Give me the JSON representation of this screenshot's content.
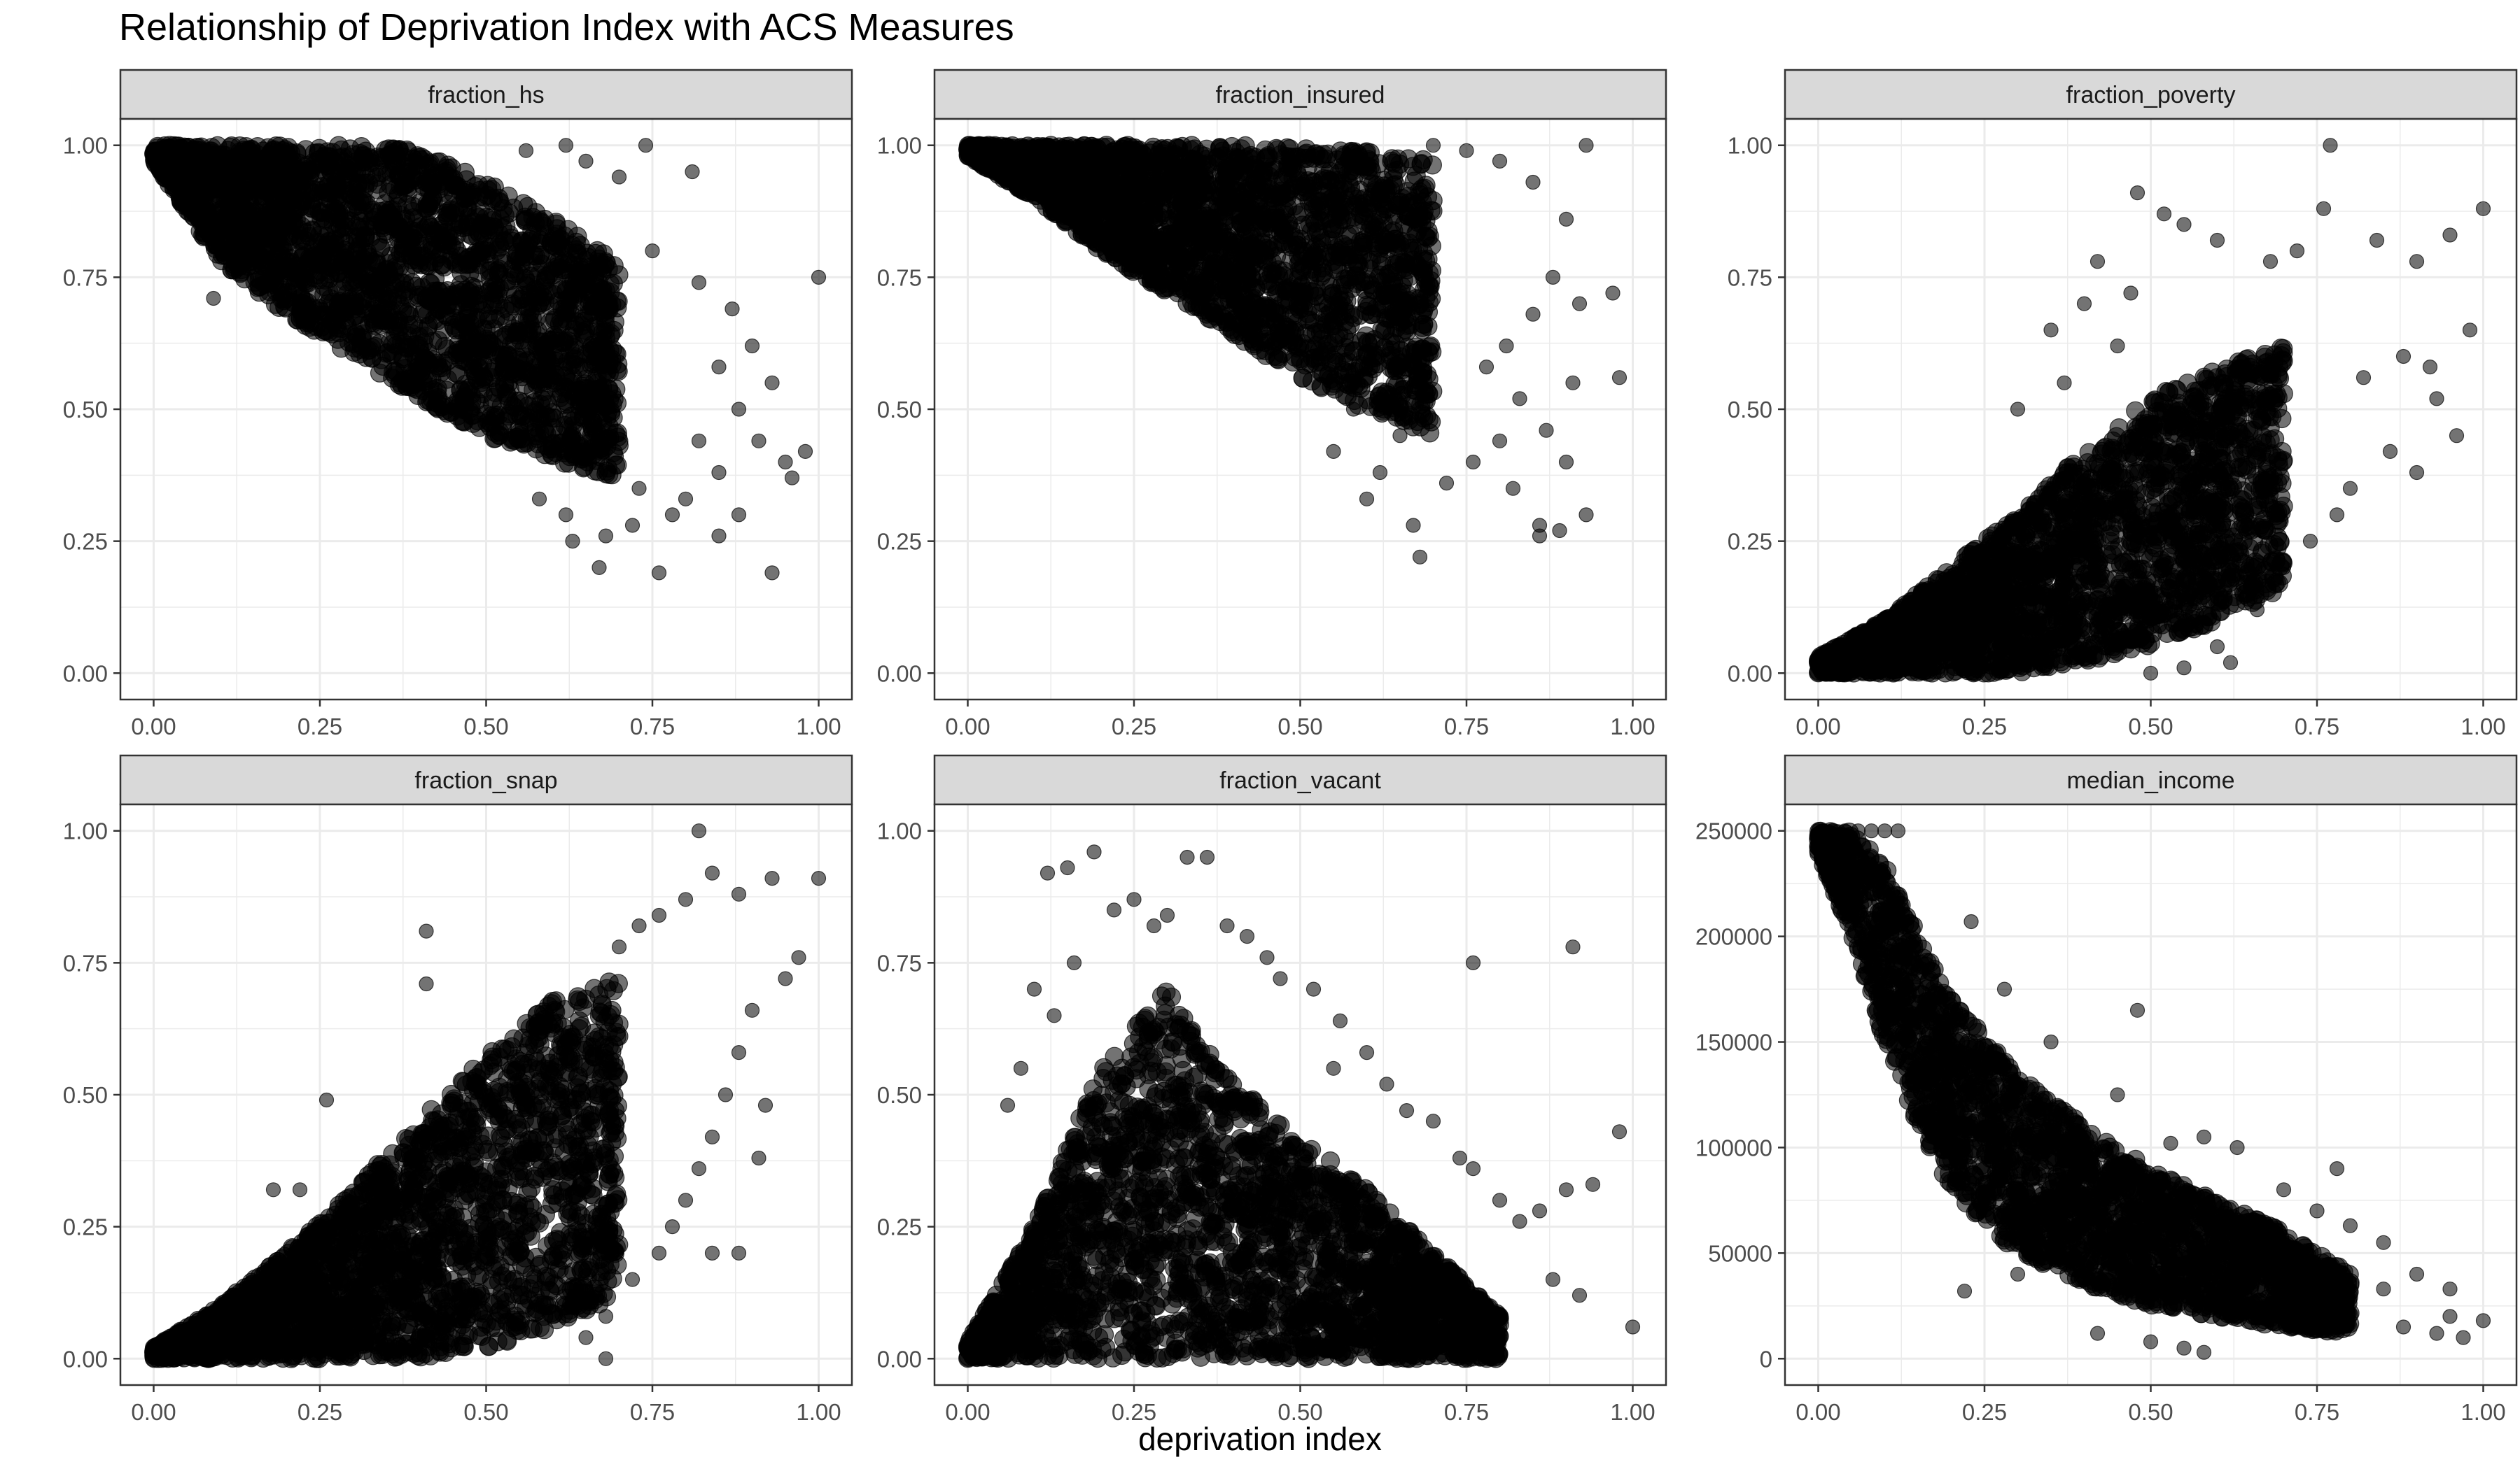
{
  "title": "Relationship of Deprivation Index with ACS Measures",
  "xlabel": "deprivation index",
  "colors": {
    "point": "#000000",
    "strip": "#d9d9d9",
    "grid": "#ebebeb",
    "border": "#333333",
    "tick_text": "#4d4d4d"
  },
  "chart_data": [
    {
      "type": "scatter",
      "panel": "fraction_hs",
      "xlim": [
        0,
        1
      ],
      "ylim": [
        0,
        1
      ],
      "x_ticks": [
        0,
        0.25,
        0.5,
        0.75,
        1
      ],
      "x_tick_labels": [
        "0.00",
        "0.25",
        "0.50",
        "0.75",
        "1.00"
      ],
      "y_ticks": [
        0,
        0.25,
        0.5,
        0.75,
        1
      ],
      "y_tick_labels": [
        "0.00",
        "0.25",
        "0.50",
        "0.75",
        "1.00"
      ],
      "band": [
        [
          0.0,
          0.97,
          1.0
        ],
        [
          0.1,
          0.78,
          1.0
        ],
        [
          0.2,
          0.68,
          1.0
        ],
        [
          0.3,
          0.6,
          1.0
        ],
        [
          0.4,
          0.52,
          0.99
        ],
        [
          0.5,
          0.45,
          0.93
        ],
        [
          0.6,
          0.4,
          0.86
        ],
        [
          0.7,
          0.37,
          0.78
        ]
      ],
      "outliers": [
        [
          0.09,
          0.71
        ],
        [
          0.56,
          0.99
        ],
        [
          0.62,
          1.0
        ],
        [
          0.65,
          0.97
        ],
        [
          0.7,
          0.94
        ],
        [
          0.74,
          1.0
        ],
        [
          0.81,
          0.95
        ],
        [
          0.75,
          0.8
        ],
        [
          0.82,
          0.74
        ],
        [
          0.87,
          0.69
        ],
        [
          0.9,
          0.62
        ],
        [
          0.85,
          0.58
        ],
        [
          0.93,
          0.55
        ],
        [
          0.88,
          0.5
        ],
        [
          0.91,
          0.44
        ],
        [
          0.95,
          0.4
        ],
        [
          0.85,
          0.38
        ],
        [
          0.8,
          0.33
        ],
        [
          0.78,
          0.3
        ],
        [
          0.72,
          0.28
        ],
        [
          0.68,
          0.26
        ],
        [
          0.63,
          0.25
        ],
        [
          0.67,
          0.2
        ],
        [
          0.76,
          0.19
        ],
        [
          0.93,
          0.19
        ],
        [
          0.98,
          0.42
        ],
        [
          1.0,
          0.75
        ],
        [
          0.88,
          0.3
        ],
        [
          0.73,
          0.35
        ],
        [
          0.62,
          0.3
        ],
        [
          0.58,
          0.33
        ],
        [
          0.85,
          0.26
        ],
        [
          0.82,
          0.44
        ],
        [
          0.96,
          0.37
        ]
      ]
    },
    {
      "type": "scatter",
      "panel": "fraction_insured",
      "xlim": [
        0,
        1
      ],
      "ylim": [
        0,
        1
      ],
      "x_ticks": [
        0,
        0.25,
        0.5,
        0.75,
        1
      ],
      "x_tick_labels": [
        "0.00",
        "0.25",
        "0.50",
        "0.75",
        "1.00"
      ],
      "y_ticks": [
        0,
        0.25,
        0.5,
        0.75,
        1
      ],
      "y_tick_labels": [
        "0.00",
        "0.25",
        "0.50",
        "0.75",
        "1.00"
      ],
      "band": [
        [
          0.0,
          0.98,
          1.0
        ],
        [
          0.1,
          0.9,
          1.0
        ],
        [
          0.2,
          0.8,
          1.0
        ],
        [
          0.3,
          0.72,
          1.0
        ],
        [
          0.4,
          0.64,
          1.0
        ],
        [
          0.5,
          0.56,
          1.0
        ],
        [
          0.6,
          0.5,
          0.99
        ],
        [
          0.7,
          0.45,
          0.97
        ]
      ],
      "outliers": [
        [
          0.7,
          1.0
        ],
        [
          0.75,
          0.99
        ],
        [
          0.8,
          0.97
        ],
        [
          0.85,
          0.93
        ],
        [
          0.93,
          1.0
        ],
        [
          0.9,
          0.86
        ],
        [
          0.88,
          0.75
        ],
        [
          0.92,
          0.7
        ],
        [
          0.85,
          0.68
        ],
        [
          0.81,
          0.62
        ],
        [
          0.78,
          0.58
        ],
        [
          0.83,
          0.52
        ],
        [
          0.87,
          0.46
        ],
        [
          0.8,
          0.44
        ],
        [
          0.76,
          0.4
        ],
        [
          0.72,
          0.36
        ],
        [
          0.67,
          0.28
        ],
        [
          0.68,
          0.22
        ],
        [
          0.6,
          0.33
        ],
        [
          0.62,
          0.38
        ],
        [
          0.55,
          0.42
        ],
        [
          0.86,
          0.28
        ],
        [
          0.86,
          0.26
        ],
        [
          0.89,
          0.27
        ],
        [
          0.93,
          0.3
        ],
        [
          0.97,
          0.72
        ],
        [
          0.98,
          0.56
        ],
        [
          0.91,
          0.55
        ],
        [
          0.82,
          0.35
        ],
        [
          0.9,
          0.4
        ],
        [
          0.65,
          0.45
        ],
        [
          0.58,
          0.5
        ]
      ]
    },
    {
      "type": "scatter",
      "panel": "fraction_poverty",
      "xlim": [
        0,
        1
      ],
      "ylim": [
        0,
        1
      ],
      "x_ticks": [
        0,
        0.25,
        0.5,
        0.75,
        1
      ],
      "x_tick_labels": [
        "0.00",
        "0.25",
        "0.50",
        "0.75",
        "1.00"
      ],
      "y_ticks": [
        0,
        0.25,
        0.5,
        0.75,
        1
      ],
      "y_tick_labels": [
        "0.00",
        "0.25",
        "0.50",
        "0.75",
        "1.00"
      ],
      "band": [
        [
          0.0,
          0.0,
          0.03
        ],
        [
          0.1,
          0.0,
          0.1
        ],
        [
          0.2,
          0.0,
          0.2
        ],
        [
          0.3,
          0.0,
          0.3
        ],
        [
          0.4,
          0.02,
          0.42
        ],
        [
          0.5,
          0.05,
          0.52
        ],
        [
          0.6,
          0.1,
          0.58
        ],
        [
          0.7,
          0.16,
          0.62
        ]
      ],
      "outliers": [
        [
          0.48,
          0.91
        ],
        [
          0.52,
          0.87
        ],
        [
          0.55,
          0.85
        ],
        [
          0.6,
          0.82
        ],
        [
          0.68,
          0.78
        ],
        [
          0.72,
          0.8
        ],
        [
          0.76,
          0.88
        ],
        [
          0.84,
          0.82
        ],
        [
          0.9,
          0.78
        ],
        [
          0.95,
          0.83
        ],
        [
          1.0,
          0.88
        ],
        [
          0.98,
          0.65
        ],
        [
          0.96,
          0.45
        ],
        [
          0.93,
          0.52
        ],
        [
          0.9,
          0.38
        ],
        [
          0.86,
          0.42
        ],
        [
          0.8,
          0.35
        ],
        [
          0.78,
          0.3
        ],
        [
          0.74,
          0.25
        ],
        [
          0.7,
          0.2
        ],
        [
          0.66,
          0.12
        ],
        [
          0.6,
          0.05
        ],
        [
          0.62,
          0.02
        ],
        [
          0.55,
          0.01
        ],
        [
          0.5,
          0.0
        ],
        [
          0.45,
          0.62
        ],
        [
          0.4,
          0.7
        ],
        [
          0.42,
          0.78
        ],
        [
          0.35,
          0.65
        ],
        [
          0.37,
          0.55
        ],
        [
          0.3,
          0.5
        ],
        [
          0.47,
          0.72
        ],
        [
          0.77,
          1.0
        ],
        [
          0.88,
          0.6
        ],
        [
          0.82,
          0.56
        ],
        [
          0.92,
          0.58
        ]
      ]
    },
    {
      "type": "scatter",
      "panel": "fraction_snap",
      "xlim": [
        0,
        1
      ],
      "ylim": [
        0,
        1
      ],
      "x_ticks": [
        0,
        0.25,
        0.5,
        0.75,
        1
      ],
      "x_tick_labels": [
        "0.00",
        "0.25",
        "0.50",
        "0.75",
        "1.00"
      ],
      "y_ticks": [
        0,
        0.25,
        0.5,
        0.75,
        1
      ],
      "y_tick_labels": [
        "0.00",
        "0.25",
        "0.50",
        "0.75",
        "1.00"
      ],
      "band": [
        [
          0.0,
          0.0,
          0.02
        ],
        [
          0.1,
          0.0,
          0.1
        ],
        [
          0.2,
          0.0,
          0.2
        ],
        [
          0.3,
          0.0,
          0.32
        ],
        [
          0.4,
          0.0,
          0.45
        ],
        [
          0.5,
          0.02,
          0.58
        ],
        [
          0.6,
          0.06,
          0.68
        ],
        [
          0.7,
          0.12,
          0.72
        ]
      ],
      "outliers": [
        [
          0.41,
          0.81
        ],
        [
          0.41,
          0.71
        ],
        [
          0.26,
          0.49
        ],
        [
          0.18,
          0.32
        ],
        [
          0.22,
          0.32
        ],
        [
          0.7,
          0.78
        ],
        [
          0.73,
          0.82
        ],
        [
          0.76,
          0.84
        ],
        [
          0.8,
          0.87
        ],
        [
          0.82,
          1.0
        ],
        [
          0.84,
          0.92
        ],
        [
          0.88,
          0.88
        ],
        [
          0.93,
          0.91
        ],
        [
          1.0,
          0.91
        ],
        [
          0.97,
          0.76
        ],
        [
          0.95,
          0.72
        ],
        [
          0.9,
          0.66
        ],
        [
          0.88,
          0.58
        ],
        [
          0.86,
          0.5
        ],
        [
          0.84,
          0.42
        ],
        [
          0.82,
          0.36
        ],
        [
          0.8,
          0.3
        ],
        [
          0.78,
          0.25
        ],
        [
          0.76,
          0.2
        ],
        [
          0.72,
          0.15
        ],
        [
          0.68,
          0.08
        ],
        [
          0.65,
          0.04
        ],
        [
          0.68,
          0.0
        ],
        [
          0.84,
          0.2
        ],
        [
          0.88,
          0.2
        ],
        [
          0.91,
          0.38
        ],
        [
          0.92,
          0.48
        ]
      ]
    },
    {
      "type": "scatter",
      "panel": "fraction_vacant",
      "xlim": [
        0,
        1
      ],
      "ylim": [
        0,
        1
      ],
      "x_ticks": [
        0,
        0.25,
        0.5,
        0.75,
        1
      ],
      "x_tick_labels": [
        "0.00",
        "0.25",
        "0.50",
        "0.75",
        "1.00"
      ],
      "y_ticks": [
        0,
        0.25,
        0.5,
        0.75,
        1
      ],
      "y_tick_labels": [
        "0.00",
        "0.25",
        "0.50",
        "0.75",
        "1.00"
      ],
      "band": [
        [
          0.0,
          0.0,
          0.03
        ],
        [
          0.1,
          0.0,
          0.25
        ],
        [
          0.2,
          0.0,
          0.55
        ],
        [
          0.3,
          0.0,
          0.7
        ],
        [
          0.4,
          0.0,
          0.52
        ],
        [
          0.5,
          0.0,
          0.42
        ],
        [
          0.6,
          0.0,
          0.32
        ],
        [
          0.7,
          0.0,
          0.2
        ],
        [
          0.8,
          0.0,
          0.08
        ]
      ],
      "outliers": [
        [
          0.12,
          0.92
        ],
        [
          0.15,
          0.93
        ],
        [
          0.19,
          0.96
        ],
        [
          0.22,
          0.85
        ],
        [
          0.25,
          0.87
        ],
        [
          0.28,
          0.82
        ],
        [
          0.3,
          0.84
        ],
        [
          0.33,
          0.95
        ],
        [
          0.36,
          0.95
        ],
        [
          0.39,
          0.82
        ],
        [
          0.42,
          0.8
        ],
        [
          0.45,
          0.76
        ],
        [
          0.47,
          0.72
        ],
        [
          0.52,
          0.7
        ],
        [
          0.56,
          0.64
        ],
        [
          0.6,
          0.58
        ],
        [
          0.63,
          0.52
        ],
        [
          0.66,
          0.47
        ],
        [
          0.7,
          0.45
        ],
        [
          0.74,
          0.38
        ],
        [
          0.76,
          0.36
        ],
        [
          0.8,
          0.3
        ],
        [
          0.83,
          0.26
        ],
        [
          0.86,
          0.28
        ],
        [
          0.9,
          0.32
        ],
        [
          0.94,
          0.33
        ],
        [
          0.98,
          0.43
        ],
        [
          1.0,
          0.06
        ],
        [
          0.91,
          0.78
        ],
        [
          0.76,
          0.75
        ],
        [
          0.06,
          0.48
        ],
        [
          0.1,
          0.7
        ],
        [
          0.13,
          0.65
        ],
        [
          0.08,
          0.55
        ],
        [
          0.16,
          0.75
        ],
        [
          0.55,
          0.55
        ],
        [
          0.92,
          0.12
        ],
        [
          0.88,
          0.15
        ]
      ]
    },
    {
      "type": "scatter",
      "panel": "median_income",
      "xlim": [
        0,
        1
      ],
      "ylim": [
        0,
        250000
      ],
      "x_ticks": [
        0,
        0.25,
        0.5,
        0.75,
        1
      ],
      "x_tick_labels": [
        "0.00",
        "0.25",
        "0.50",
        "0.75",
        "1.00"
      ],
      "y_ticks": [
        0,
        50000,
        100000,
        150000,
        200000,
        250000
      ],
      "y_tick_labels": [
        "0",
        "50000",
        "100000",
        "150000",
        "200000",
        "250000"
      ],
      "band": [
        [
          0.0,
          240000,
          250000
        ],
        [
          0.05,
          200000,
          250000
        ],
        [
          0.1,
          150000,
          235000
        ],
        [
          0.15,
          110000,
          200000
        ],
        [
          0.2,
          80000,
          170000
        ],
        [
          0.3,
          50000,
          135000
        ],
        [
          0.4,
          35000,
          110000
        ],
        [
          0.5,
          25000,
          90000
        ],
        [
          0.6,
          20000,
          75000
        ],
        [
          0.7,
          15000,
          60000
        ],
        [
          0.8,
          12000,
          40000
        ]
      ],
      "outliers": [
        [
          0.0,
          250000
        ],
        [
          0.02,
          250000
        ],
        [
          0.04,
          250000
        ],
        [
          0.06,
          250000
        ],
        [
          0.08,
          250000
        ],
        [
          0.1,
          250000
        ],
        [
          0.12,
          250000
        ],
        [
          0.23,
          207000
        ],
        [
          0.28,
          175000
        ],
        [
          0.35,
          150000
        ],
        [
          0.45,
          125000
        ],
        [
          0.53,
          102000
        ],
        [
          0.58,
          105000
        ],
        [
          0.63,
          100000
        ],
        [
          0.7,
          80000
        ],
        [
          0.75,
          70000
        ],
        [
          0.8,
          63000
        ],
        [
          0.85,
          55000
        ],
        [
          0.9,
          40000
        ],
        [
          0.95,
          33000
        ],
        [
          1.0,
          18000
        ],
        [
          0.97,
          10000
        ],
        [
          0.93,
          12000
        ],
        [
          0.88,
          15000
        ],
        [
          0.22,
          32000
        ],
        [
          0.3,
          40000
        ],
        [
          0.42,
          12000
        ],
        [
          0.55,
          5000
        ],
        [
          0.5,
          8000
        ],
        [
          0.58,
          3000
        ],
        [
          0.48,
          165000
        ],
        [
          0.95,
          20000
        ],
        [
          0.78,
          90000
        ],
        [
          0.85,
          33000
        ]
      ]
    }
  ]
}
